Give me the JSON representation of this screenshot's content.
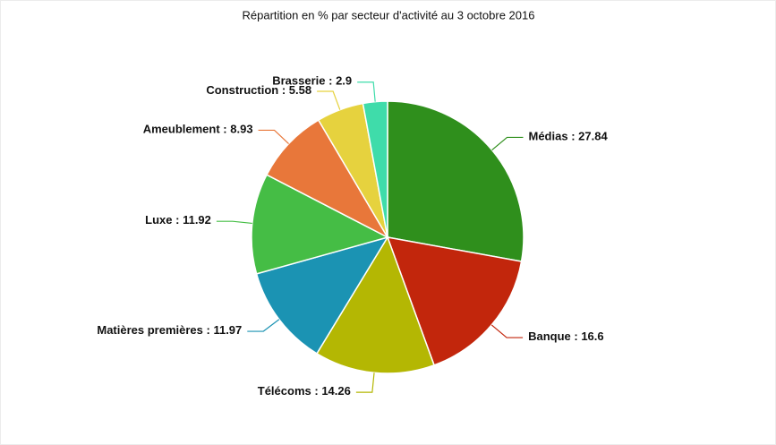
{
  "chart_data": {
    "type": "pie",
    "title": "Répartition en % par secteur d'activité au 3 octobre 2016",
    "categories": [
      "Médias",
      "Banque",
      "Télécoms",
      "Matières premières",
      "Luxe",
      "Ameublement",
      "Construction",
      "Brasserie"
    ],
    "values": [
      27.84,
      16.6,
      14.26,
      11.97,
      11.92,
      8.93,
      5.58,
      2.9
    ],
    "colors": [
      "#2f8f1c",
      "#c2260c",
      "#b4b703",
      "#1b93b3",
      "#45bd45",
      "#e8773a",
      "#e6d23e",
      "#3fdcaa"
    ],
    "label_separator": " : "
  }
}
